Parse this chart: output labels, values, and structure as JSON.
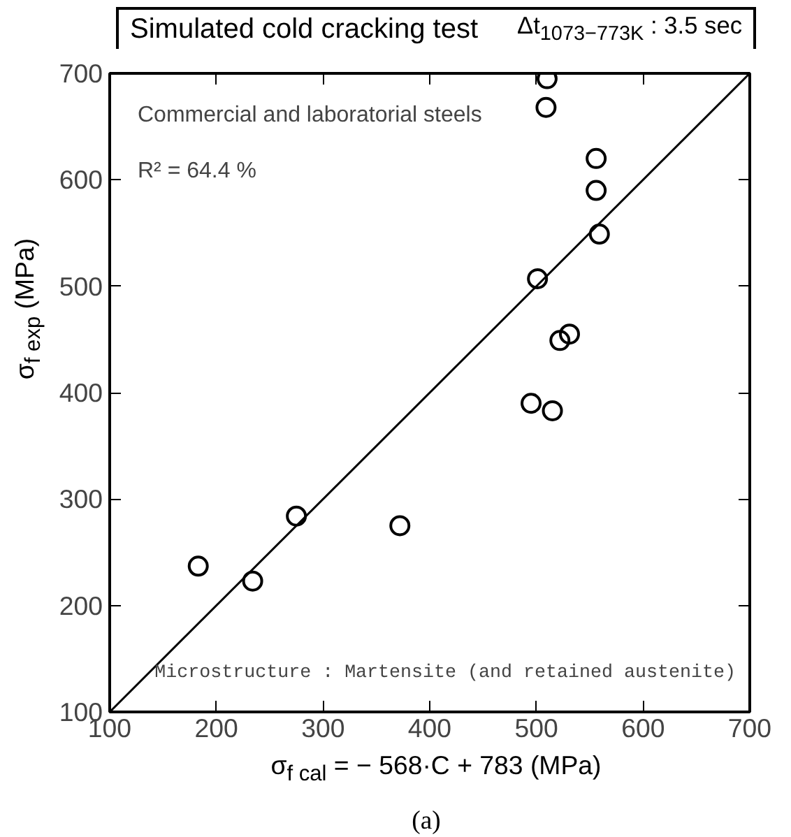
{
  "chart_data": {
    "type": "scatter",
    "title": "Simulated cold cracking test",
    "xlabel": "σ$_{f cal}$ = − 568·C + 783  (MPa)",
    "ylabel": "σ$_{f exp}$ (MPa)",
    "annotations": [
      "Δt$_{1073−773K}$ : 3.5 sec",
      "Commercial and laboratorial steels",
      "R² = 64.4 %",
      "Microstructure : Martensite (and retained austenite)",
      "(a)"
    ],
    "xlim": [
      100,
      700
    ],
    "ylim": [
      100,
      700
    ],
    "xticks": [
      100,
      200,
      300,
      400,
      500,
      600,
      700
    ],
    "yticks": [
      100,
      200,
      300,
      400,
      500,
      600,
      700
    ],
    "grid": false,
    "marker": "circle",
    "series": [
      {
        "color": "#000000",
        "x": [
          183,
          234,
          275,
          372,
          495,
          501,
          509,
          510,
          515,
          522,
          531,
          556,
          556,
          559
        ],
        "values": [
          237,
          223,
          284,
          275,
          390,
          507,
          668,
          695,
          383,
          449,
          455,
          620,
          590,
          549
        ]
      },
      {
        "type": "line",
        "color": "#000000",
        "line_style": "solid",
        "marker": "none",
        "x": [
          100,
          700
        ],
        "values": [
          100,
          700
        ]
      }
    ]
  }
}
